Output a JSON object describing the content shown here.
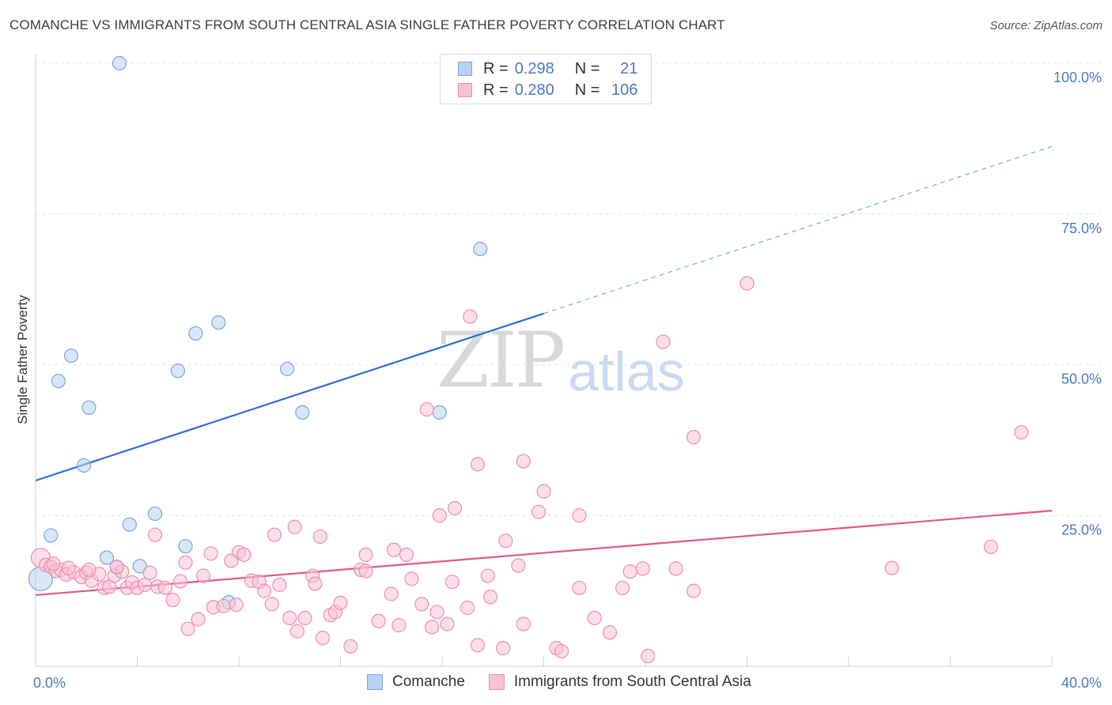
{
  "header": {
    "title": "COMANCHE VS IMMIGRANTS FROM SOUTH CENTRAL ASIA SINGLE FATHER POVERTY CORRELATION CHART",
    "source": "Source: ZipAtlas.com"
  },
  "watermark": {
    "zip": "ZIP",
    "atlas": "atlas"
  },
  "legend": {
    "rows": [
      {
        "r_label": "R =",
        "r_value": "0.298",
        "n_label": "N =",
        "n_value": "21"
      },
      {
        "r_label": "R =",
        "r_value": "0.280",
        "n_label": "N =",
        "n_value": "106"
      }
    ]
  },
  "chart_data": {
    "type": "scatter",
    "title": "COMANCHE VS IMMIGRANTS FROM SOUTH CENTRAL ASIA SINGLE FATHER POVERTY CORRELATION CHART",
    "xlabel": "",
    "ylabel": "Single Father Poverty",
    "xlim": [
      0,
      40
    ],
    "ylim": [
      0,
      100
    ],
    "x_tick_labels": [
      "0.0%",
      "40.0%"
    ],
    "y_tick_labels": [
      "25.0%",
      "50.0%",
      "75.0%",
      "100.0%"
    ],
    "y_ticks": [
      25,
      50,
      75,
      100
    ],
    "grid": true,
    "legend_position": "top-center",
    "series": [
      {
        "name": "Comanche",
        "color": "#7aa6e0",
        "fill": "#b9d1f2",
        "r": 0.298,
        "n": 21,
        "trend": {
          "x0": 0,
          "y0": 30.8,
          "x1": 20,
          "y1": 58.5,
          "dashed_to_x": 40,
          "dashed_to_y": 86.2,
          "color": "#2f6fcf"
        },
        "points": [
          [
            3.3,
            100.0
          ],
          [
            17.5,
            69.2
          ],
          [
            7.2,
            57.0
          ],
          [
            6.3,
            55.2
          ],
          [
            1.4,
            51.5
          ],
          [
            5.6,
            49.0
          ],
          [
            9.9,
            49.3
          ],
          [
            0.9,
            47.3
          ],
          [
            2.1,
            42.9
          ],
          [
            10.5,
            42.1
          ],
          [
            15.9,
            42.1
          ],
          [
            1.9,
            33.3
          ],
          [
            4.7,
            25.3
          ],
          [
            3.7,
            23.5
          ],
          [
            0.6,
            21.7
          ],
          [
            5.9,
            19.9
          ],
          [
            2.8,
            18.0
          ],
          [
            3.2,
            16.4
          ],
          [
            4.1,
            16.6
          ],
          [
            7.6,
            10.6
          ],
          [
            0.2,
            14.5
          ]
        ]
      },
      {
        "name": "Immigrants from South Central Asia",
        "color": "#ec8fab",
        "fill": "#f7c3d3",
        "r": 0.28,
        "n": 106,
        "trend": {
          "x0": 0,
          "y0": 11.8,
          "x1": 40,
          "y1": 25.8,
          "color": "#e0588a"
        },
        "points": [
          [
            28.0,
            63.5
          ],
          [
            17.1,
            58.0
          ],
          [
            24.7,
            53.8
          ],
          [
            15.4,
            42.6
          ],
          [
            25.9,
            38.0
          ],
          [
            38.8,
            38.8
          ],
          [
            19.2,
            34.0
          ],
          [
            17.4,
            33.5
          ],
          [
            20.0,
            29.0
          ],
          [
            16.5,
            26.2
          ],
          [
            15.9,
            25.0
          ],
          [
            19.8,
            25.6
          ],
          [
            21.4,
            25.0
          ],
          [
            10.2,
            23.1
          ],
          [
            4.7,
            21.8
          ],
          [
            9.4,
            21.8
          ],
          [
            11.2,
            21.5
          ],
          [
            18.5,
            20.8
          ],
          [
            37.6,
            19.8
          ],
          [
            6.9,
            18.7
          ],
          [
            8.0,
            18.9
          ],
          [
            8.2,
            18.5
          ],
          [
            13.0,
            18.5
          ],
          [
            14.1,
            19.3
          ],
          [
            14.6,
            18.5
          ],
          [
            5.9,
            17.2
          ],
          [
            7.7,
            17.5
          ],
          [
            19.0,
            16.7
          ],
          [
            0.2,
            18.0
          ],
          [
            0.4,
            16.8
          ],
          [
            0.6,
            16.5
          ],
          [
            0.8,
            15.8
          ],
          [
            1.0,
            16.0
          ],
          [
            1.2,
            15.2
          ],
          [
            1.5,
            15.6
          ],
          [
            1.8,
            14.8
          ],
          [
            2.0,
            15.5
          ],
          [
            2.2,
            14.2
          ],
          [
            2.5,
            15.3
          ],
          [
            2.7,
            13.0
          ],
          [
            2.9,
            13.2
          ],
          [
            3.1,
            15.0
          ],
          [
            3.4,
            15.7
          ],
          [
            3.6,
            13.0
          ],
          [
            3.8,
            13.9
          ],
          [
            4.0,
            13.0
          ],
          [
            4.3,
            13.5
          ],
          [
            4.5,
            15.5
          ],
          [
            4.8,
            13.2
          ],
          [
            5.1,
            13.0
          ],
          [
            5.4,
            11.0
          ],
          [
            5.7,
            14.1
          ],
          [
            6.0,
            6.2
          ],
          [
            6.4,
            7.8
          ],
          [
            6.6,
            15.0
          ],
          [
            7.0,
            9.8
          ],
          [
            7.4,
            10.0
          ],
          [
            7.9,
            10.2
          ],
          [
            8.5,
            14.2
          ],
          [
            8.8,
            14.0
          ],
          [
            9.0,
            12.5
          ],
          [
            9.3,
            10.3
          ],
          [
            9.6,
            13.5
          ],
          [
            10.0,
            8.0
          ],
          [
            10.3,
            5.8
          ],
          [
            10.6,
            8.0
          ],
          [
            10.9,
            15.0
          ],
          [
            11.0,
            13.7
          ],
          [
            11.3,
            4.7
          ],
          [
            11.6,
            8.5
          ],
          [
            11.8,
            9.0
          ],
          [
            12.0,
            10.5
          ],
          [
            12.4,
            3.3
          ],
          [
            12.8,
            16.0
          ],
          [
            13.0,
            15.8
          ],
          [
            13.5,
            7.5
          ],
          [
            14.0,
            12.0
          ],
          [
            14.3,
            6.8
          ],
          [
            14.8,
            14.5
          ],
          [
            15.2,
            10.3
          ],
          [
            15.6,
            6.5
          ],
          [
            15.8,
            9.0
          ],
          [
            16.2,
            7.0
          ],
          [
            16.4,
            14.0
          ],
          [
            17.0,
            9.7
          ],
          [
            17.4,
            3.5
          ],
          [
            17.9,
            11.5
          ],
          [
            17.8,
            15.0
          ],
          [
            18.4,
            3.0
          ],
          [
            19.2,
            7.0
          ],
          [
            20.5,
            3.0
          ],
          [
            20.7,
            2.5
          ],
          [
            21.4,
            13.0
          ],
          [
            22.0,
            8.0
          ],
          [
            22.6,
            5.6
          ],
          [
            23.1,
            13.0
          ],
          [
            23.4,
            15.7
          ],
          [
            23.9,
            16.2
          ],
          [
            24.1,
            1.7
          ],
          [
            25.2,
            16.2
          ],
          [
            25.9,
            12.5
          ],
          [
            33.7,
            16.3
          ],
          [
            2.1,
            16.0
          ],
          [
            3.2,
            16.5
          ],
          [
            0.7,
            17.0
          ],
          [
            1.3,
            16.3
          ]
        ]
      }
    ]
  }
}
